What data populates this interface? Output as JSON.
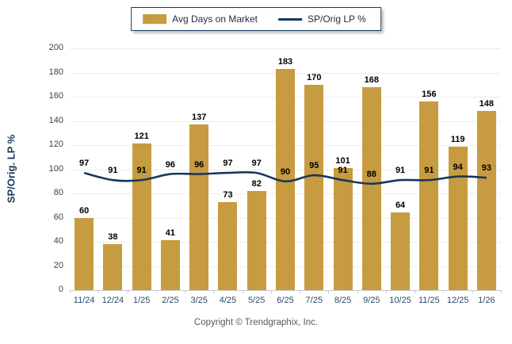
{
  "legend": {
    "bar_label": "Avg Days on Market",
    "line_label": "SP/Orig LP %"
  },
  "axis": {
    "y_label": "SP/Orig. LP %"
  },
  "footer": {
    "copyright": "Copyright © Trendgraphix, Inc."
  },
  "colors": {
    "bar": "#C79B40",
    "line": "#17375E",
    "grid": "#ECECEC",
    "axis_line": "#C9C9C9",
    "value_label": "#000000",
    "y_tick_text": "#404040",
    "x_tick_text": "#2D4A6B",
    "y_axis_title": "#17375E",
    "copyright_text": "#595959"
  },
  "chart_data": {
    "type": "bar",
    "categories": [
      "11/24",
      "12/24",
      "1/25",
      "2/25",
      "3/25",
      "4/25",
      "5/25",
      "6/25",
      "7/25",
      "8/25",
      "9/25",
      "10/25",
      "11/25",
      "12/25",
      "1/26"
    ],
    "series": [
      {
        "name": "Avg Days on Market",
        "type": "bar",
        "values": [
          60,
          38,
          121,
          41,
          137,
          73,
          82,
          183,
          170,
          101,
          168,
          64,
          156,
          119,
          148
        ]
      },
      {
        "name": "SP/Orig LP %",
        "type": "line",
        "values": [
          97,
          91,
          91,
          96,
          96,
          97,
          97,
          90,
          95,
          91,
          88,
          91,
          91,
          94,
          93
        ]
      }
    ],
    "title": "",
    "xlabel": "",
    "ylabel": "SP/Orig. LP %",
    "ylim": [
      0,
      200
    ],
    "ytick_step": 20,
    "grid": true,
    "legend_position": "top-center",
    "value_labels": true
  }
}
